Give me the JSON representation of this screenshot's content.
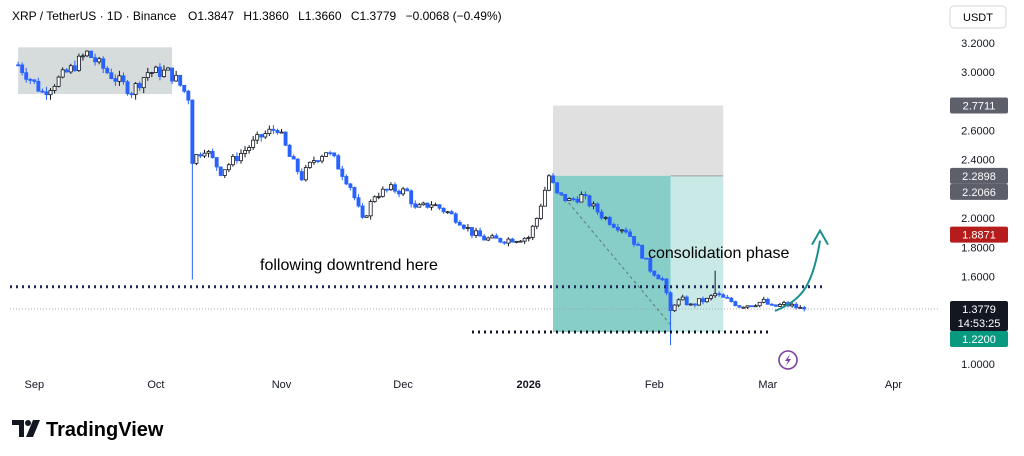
{
  "header": {
    "symbol": "XRP / TetherUS · 1D · Binance",
    "ohlc": {
      "open_label": "O",
      "open": "1.3847",
      "high_label": "H",
      "high": "1.3860",
      "low_label": "L",
      "low": "1.3660",
      "close_label": "C",
      "close": "1.3779",
      "change": "−0.0068 (−0.49%)"
    }
  },
  "currency_button": "USDT",
  "annotations": {
    "downtrend": "following downtrend here",
    "consolidation": "consolidation phase"
  },
  "logo": {
    "text": "TradingView"
  },
  "colors": {
    "up": "#131722",
    "down": "#2962ff",
    "stop_zone": "#d1d4dc",
    "target_zone": "#26a69a",
    "dotted_line": "#1e2a5a",
    "arrow": "#1a8f8f",
    "box_gray": "#c8d0d0",
    "label_gray": "#5d606b",
    "label_red": "#b71c1c",
    "label_black": "#131722",
    "label_green": "#089981",
    "bolt": "#7b3fa0"
  },
  "chart_data": {
    "type": "candlestick",
    "x_axis": {
      "type": "date",
      "tick_labels": [
        "Sep",
        "Oct",
        "Nov",
        "Dec",
        "2026",
        "Feb",
        "Mar",
        "Apr"
      ],
      "tick_dates": [
        "2025-09-01",
        "2025-10-01",
        "2025-11-01",
        "2025-12-01",
        "2026-01-01",
        "2026-02-01",
        "2026-03-01",
        "2026-04-01"
      ]
    },
    "y_axis": {
      "position": "right",
      "scale": "linear",
      "range": [
        0.96,
        3.22
      ],
      "tick_labels": [
        "3.2000",
        "3.0000",
        "2.6000",
        "2.4000",
        "2.0000",
        "1.8000",
        "1.6000",
        "1.0000"
      ],
      "tick_values": [
        3.2,
        3.0,
        2.6,
        2.4,
        2.0,
        1.8,
        1.6,
        1.0
      ]
    },
    "price_labels": [
      {
        "value": "2.7711",
        "style": "gray"
      },
      {
        "value": "2.2898",
        "style": "gray"
      },
      {
        "value": "2.2066",
        "style": "gray"
      },
      {
        "value": "1.8871",
        "style": "red"
      },
      {
        "value": "1.3779",
        "style": "black",
        "countdown": "14:53:25"
      },
      {
        "value": "1.2200",
        "style": "green"
      }
    ],
    "price_path": [
      [
        "2025-08-28",
        3.05
      ],
      [
        "2025-09-03",
        2.86
      ],
      [
        "2025-09-10",
        3.02
      ],
      [
        "2025-09-14",
        3.13
      ],
      [
        "2025-09-19",
        3.0
      ],
      [
        "2025-09-25",
        2.87
      ],
      [
        "2025-09-29",
        3.0
      ],
      [
        "2025-10-04",
        3.0
      ],
      [
        "2025-10-06",
        2.95
      ],
      [
        "2025-10-09",
        2.83
      ],
      [
        "2025-10-10",
        2.4
      ],
      [
        "2025-10-13",
        2.48
      ],
      [
        "2025-10-17",
        2.32
      ],
      [
        "2025-10-21",
        2.42
      ],
      [
        "2025-10-27",
        2.56
      ],
      [
        "2025-10-31",
        2.62
      ],
      [
        "2025-11-03",
        2.42
      ],
      [
        "2025-11-06",
        2.28
      ],
      [
        "2025-11-09",
        2.4
      ],
      [
        "2025-11-12",
        2.46
      ],
      [
        "2025-11-14",
        2.4
      ],
      [
        "2025-11-18",
        2.22
      ],
      [
        "2025-11-21",
        1.98
      ],
      [
        "2025-11-24",
        2.16
      ],
      [
        "2025-11-28",
        2.2
      ],
      [
        "2025-12-02",
        2.18
      ],
      [
        "2025-12-04",
        2.06
      ],
      [
        "2025-12-08",
        2.1
      ],
      [
        "2025-12-12",
        2.04
      ],
      [
        "2025-12-15",
        1.98
      ],
      [
        "2025-12-18",
        1.9
      ],
      [
        "2025-12-21",
        1.86
      ],
      [
        "2025-12-25",
        1.85
      ],
      [
        "2025-12-29",
        1.86
      ],
      [
        "2026-01-01",
        1.87
      ],
      [
        "2026-01-03",
        2.0
      ],
      [
        "2026-01-06",
        2.29
      ],
      [
        "2026-01-08",
        2.16
      ],
      [
        "2026-01-11",
        2.12
      ],
      [
        "2026-01-14",
        2.15
      ],
      [
        "2026-01-16",
        2.1
      ],
      [
        "2026-01-19",
        2.02
      ],
      [
        "2026-01-22",
        1.96
      ],
      [
        "2026-01-25",
        1.92
      ],
      [
        "2026-01-27",
        1.84
      ],
      [
        "2026-01-29",
        1.75
      ],
      [
        "2026-01-31",
        1.65
      ],
      [
        "2026-02-03",
        1.58
      ],
      [
        "2026-02-05",
        1.36
      ],
      [
        "2026-02-06",
        1.42
      ],
      [
        "2026-02-08",
        1.44
      ],
      [
        "2026-02-10",
        1.4
      ],
      [
        "2026-02-12",
        1.43
      ],
      [
        "2026-02-14",
        1.44
      ],
      [
        "2026-02-16",
        1.48
      ],
      [
        "2026-02-18",
        1.45
      ],
      [
        "2026-02-20",
        1.43
      ],
      [
        "2026-02-22",
        1.4
      ],
      [
        "2026-02-25",
        1.41
      ],
      [
        "2026-02-28",
        1.43
      ],
      [
        "2026-03-02",
        1.39
      ],
      [
        "2026-03-05",
        1.41
      ],
      [
        "2026-03-07",
        1.4
      ],
      [
        "2026-03-09",
        1.38
      ],
      [
        "2026-03-10",
        1.3779
      ]
    ],
    "levels": {
      "resistance": 1.53,
      "support": 1.22,
      "current": 1.3779
    },
    "zones": {
      "gray_box": {
        "from": "2025-08-28",
        "to": "2025-10-05",
        "low": 2.85,
        "high": 3.17
      },
      "stop_zone": {
        "from": "2026-01-07",
        "to": "2026-02-18",
        "low": 2.2898,
        "high": 2.7711
      },
      "target_zone": {
        "from": "2026-01-07",
        "to": "2026-02-18",
        "low": 1.22,
        "high": 2.2898,
        "split": "2026-02-05"
      }
    },
    "projection_arrow": {
      "target": 1.8871
    }
  }
}
